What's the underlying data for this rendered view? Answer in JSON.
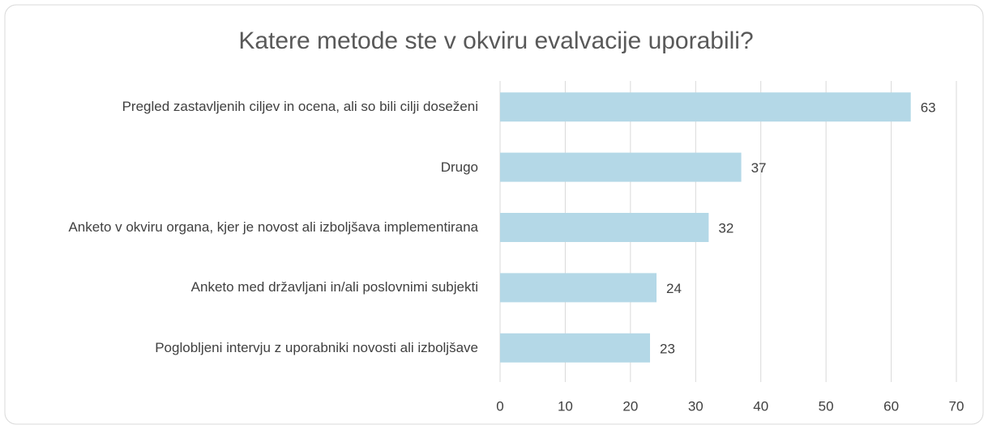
{
  "chart_data": {
    "type": "bar",
    "orientation": "horizontal",
    "title": "Katere metode ste v okviru evalvacije uporabili?",
    "categories": [
      "Pregled zastavljenih ciljev in ocena, ali so bili cilji doseženi",
      "Drugo",
      "Anketo v okviru organa, kjer je novost ali izboljšava implementirana",
      "Anketo med državljani in/ali poslovnimi subjekti",
      "Poglobljeni intervju z uporabniki novosti ali izboljšave"
    ],
    "values": [
      63,
      37,
      32,
      24,
      23
    ],
    "color": "#b4d8e7",
    "xlim": [
      0,
      70
    ],
    "xticks": [
      0,
      10,
      20,
      30,
      40,
      50,
      60,
      70
    ],
    "grid": true
  }
}
